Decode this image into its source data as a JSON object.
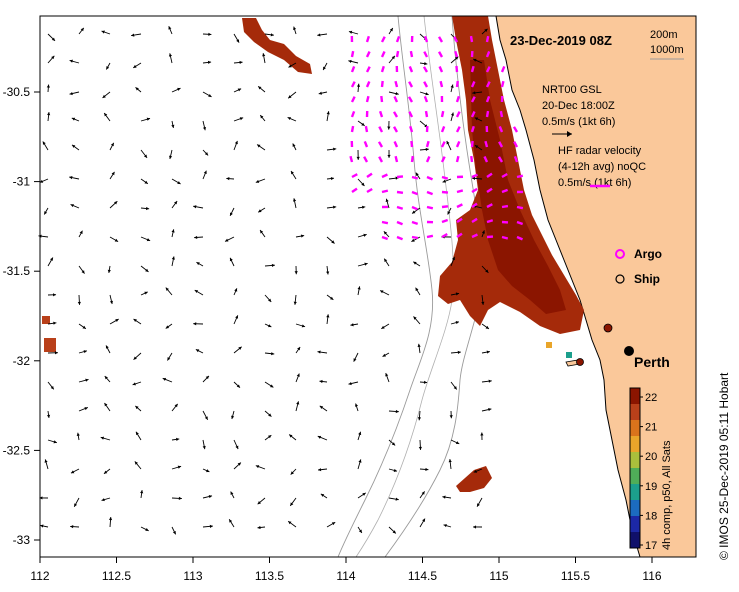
{
  "map": {
    "date_title": "23-Dec-2019 08Z",
    "isobath_labels": [
      "200m",
      "1000m"
    ],
    "vector_legend": {
      "model_line1": "NRT00 GSL",
      "model_line2": "20-Dec 18:00Z",
      "model_scale": "0.5m/s (1kt 6h)",
      "radar_line1": "HF radar velocity",
      "radar_line2": "(4-12h avg) noQC",
      "radar_scale": "0.5m/s (1kt 6h)"
    },
    "markers": {
      "argo_label": "Argo",
      "ship_label": "Ship",
      "city_label": "Perth"
    },
    "colorbar": {
      "ticks": [
        "22",
        "21",
        "20",
        "19",
        "18",
        "17"
      ],
      "caption": "4h comp, p50, All Sats",
      "colors": [
        "#8b1500",
        "#b9401a",
        "#d9731c",
        "#e9a52a",
        "#a9bf3c",
        "#4fae58",
        "#1c9f8c",
        "#1c6bbf",
        "#1c28a6",
        "#10106a"
      ]
    },
    "credit": "© IMOS 25-Dec-2019 05:11 Hobart",
    "x_ticks": [
      "112",
      "112.5",
      "113",
      "113.5",
      "114",
      "114.5",
      "115",
      "115.5",
      "116"
    ],
    "y_ticks": [
      "-30.5",
      "-31",
      "-31.5",
      "-32",
      "-32.5",
      "-33"
    ],
    "colors": {
      "land": "#fac89a",
      "radar_vector": "#ff00ff",
      "sst_hot": "#a52a0a"
    }
  }
}
